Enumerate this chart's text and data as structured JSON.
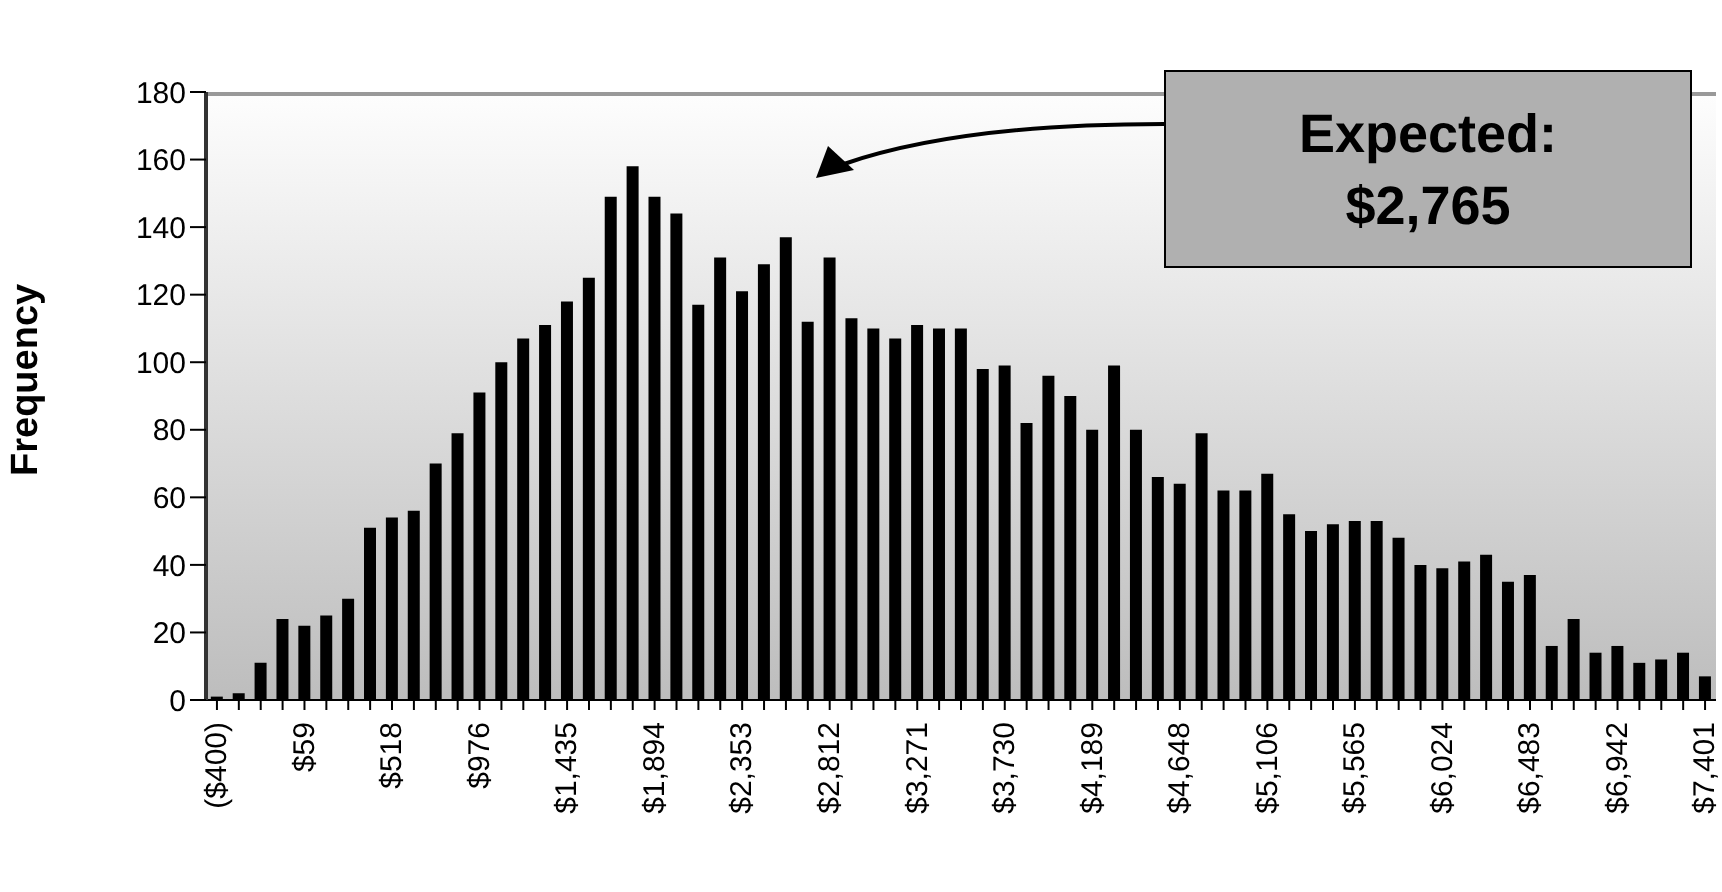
{
  "chart_data": {
    "type": "bar",
    "ylabel": "Frequency",
    "color": "#000000",
    "categories": [
      "($400)",
      null,
      null,
      null,
      "$59",
      null,
      null,
      null,
      "$518",
      null,
      null,
      null,
      "$976",
      null,
      null,
      null,
      "$1,435",
      null,
      null,
      null,
      "$1,894",
      null,
      null,
      null,
      "$2,353",
      null,
      null,
      null,
      "$2,812",
      null,
      null,
      null,
      "$3,271",
      null,
      null,
      null,
      "$3,730",
      null,
      null,
      null,
      "$4,189",
      null,
      null,
      null,
      "$4,648",
      null,
      null,
      null,
      "$5,106",
      null,
      null,
      null,
      "$5,565",
      null,
      null,
      null,
      "$6,024",
      null,
      null,
      null,
      "$6,483",
      null,
      null,
      null,
      "$6,942",
      null,
      null,
      null,
      "$7,401"
    ],
    "values": [
      1,
      2,
      11,
      24,
      22,
      25,
      30,
      51,
      54,
      56,
      70,
      79,
      91,
      100,
      107,
      111,
      118,
      125,
      149,
      158,
      149,
      144,
      117,
      131,
      121,
      129,
      137,
      112,
      131,
      113,
      110,
      107,
      111,
      110,
      110,
      98,
      99,
      82,
      96,
      90,
      80,
      99,
      80,
      66,
      64,
      79,
      62,
      62,
      67,
      55,
      50,
      52,
      53,
      53,
      48,
      40,
      39,
      41,
      43,
      35,
      37,
      16,
      24,
      14,
      16,
      11,
      12,
      14,
      7
    ],
    "ylim": [
      0,
      180
    ],
    "yticks": [
      0,
      20,
      40,
      60,
      80,
      100,
      120,
      140,
      160,
      180
    ],
    "annotations": [
      "Expected:\n$2,765"
    ]
  }
}
